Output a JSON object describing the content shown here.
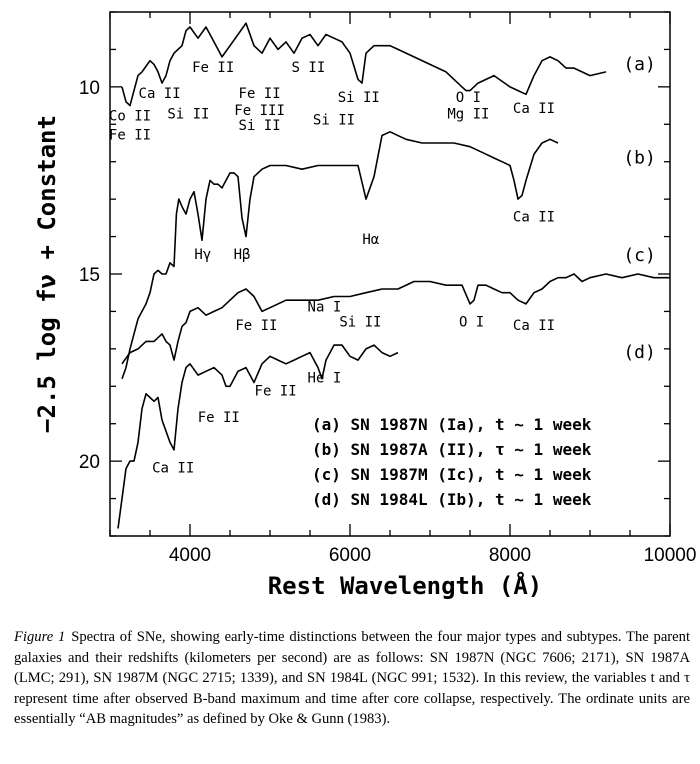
{
  "chart_data": {
    "type": "line",
    "xlabel": "Rest Wavelength (Å)",
    "ylabel": "−2.5 log fν + Constant",
    "xlim": [
      3000,
      10000
    ],
    "ylim": [
      22,
      8
    ],
    "y_inverted": true,
    "x_ticks": [
      4000,
      6000,
      8000,
      10000
    ],
    "x_tick_labels": [
      "4000",
      "6000",
      "8000",
      "10000"
    ],
    "y_ticks": [
      10,
      15,
      20
    ],
    "y_tick_labels": [
      "10",
      "15",
      "20"
    ],
    "grid": false,
    "series": [
      {
        "name": "(a)",
        "x": [
          3150,
          3200,
          3250,
          3300,
          3350,
          3400,
          3500,
          3550,
          3600,
          3650,
          3700,
          3750,
          3800,
          3850,
          3900,
          3950,
          4000,
          4100,
          4200,
          4300,
          4400,
          4500,
          4600,
          4700,
          4800,
          4900,
          5000,
          5100,
          5200,
          5300,
          5400,
          5500,
          5600,
          5700,
          5800,
          5900,
          6000,
          6100,
          6150,
          6200,
          6300,
          6400,
          6500,
          6600,
          6800,
          7000,
          7200,
          7400,
          7450,
          7500,
          7600,
          7700,
          7800,
          8000,
          8100,
          8200,
          8300,
          8400,
          8500,
          8600,
          8700,
          8800,
          9000,
          9200
        ],
        "y": [
          10.0,
          10.4,
          10.5,
          10.1,
          9.7,
          9.6,
          9.3,
          9.4,
          9.6,
          9.9,
          9.7,
          9.3,
          9.1,
          9.0,
          8.9,
          8.5,
          8.4,
          8.7,
          8.4,
          8.8,
          9.2,
          8.9,
          8.6,
          8.3,
          8.9,
          9.1,
          8.7,
          9.0,
          8.8,
          9.1,
          8.7,
          8.6,
          8.9,
          8.6,
          8.7,
          8.8,
          9.1,
          9.8,
          9.9,
          9.1,
          8.9,
          8.9,
          8.9,
          9.0,
          9.2,
          9.4,
          9.6,
          10.0,
          10.1,
          10.1,
          9.9,
          9.8,
          9.7,
          10.0,
          10.1,
          10.2,
          9.7,
          9.3,
          9.2,
          9.3,
          9.5,
          9.5,
          9.7,
          9.6
        ]
      },
      {
        "name": "(b)",
        "x": [
          3150,
          3200,
          3250,
          3300,
          3350,
          3400,
          3450,
          3500,
          3550,
          3600,
          3650,
          3700,
          3750,
          3800,
          3830,
          3860,
          3900,
          3950,
          4000,
          4050,
          4100,
          4150,
          4200,
          4250,
          4300,
          4350,
          4400,
          4450,
          4500,
          4550,
          4600,
          4650,
          4700,
          4750,
          4800,
          4900,
          5000,
          5200,
          5400,
          5600,
          5800,
          6000,
          6100,
          6200,
          6300,
          6400,
          6500,
          6700,
          6900,
          7100,
          7300,
          7500,
          7700,
          7800,
          7900,
          8000,
          8050,
          8100,
          8150,
          8200,
          8300,
          8400,
          8500,
          8600
        ],
        "y": [
          17.8,
          17.5,
          17.0,
          16.6,
          16.2,
          16.0,
          15.8,
          15.5,
          15.0,
          14.9,
          15.0,
          15.0,
          14.7,
          14.8,
          13.4,
          13.0,
          13.2,
          13.4,
          13.0,
          12.8,
          13.4,
          14.1,
          13.0,
          12.5,
          12.6,
          12.6,
          12.7,
          12.5,
          12.3,
          12.3,
          12.4,
          13.5,
          14.0,
          13.0,
          12.4,
          12.2,
          12.1,
          12.1,
          12.2,
          12.1,
          12.1,
          12.1,
          12.1,
          13.0,
          12.4,
          11.3,
          11.2,
          11.4,
          11.5,
          11.5,
          11.5,
          11.6,
          11.8,
          11.9,
          12.0,
          12.1,
          12.5,
          13.0,
          12.9,
          12.5,
          11.8,
          11.5,
          11.4,
          11.5
        ]
      },
      {
        "name": "(c)",
        "x": [
          3150,
          3250,
          3350,
          3450,
          3550,
          3650,
          3700,
          3750,
          3800,
          3850,
          3900,
          3950,
          4000,
          4100,
          4200,
          4300,
          4400,
          4500,
          4600,
          4700,
          4800,
          4900,
          5000,
          5200,
          5400,
          5600,
          5800,
          6000,
          6200,
          6400,
          6600,
          6800,
          7000,
          7200,
          7400,
          7500,
          7550,
          7600,
          7700,
          7800,
          7900,
          8000,
          8100,
          8200,
          8300,
          8400,
          8500,
          8600,
          8700,
          8800,
          8900,
          9000,
          9200,
          9400,
          9600,
          9800,
          10000
        ],
        "y": [
          17.4,
          17.1,
          17.0,
          16.8,
          16.8,
          16.6,
          16.8,
          16.9,
          17.3,
          16.8,
          16.4,
          16.3,
          16.0,
          15.9,
          16.1,
          16.0,
          15.9,
          15.7,
          15.5,
          15.4,
          15.6,
          16.0,
          15.9,
          15.7,
          15.7,
          15.7,
          15.6,
          15.6,
          15.5,
          15.4,
          15.4,
          15.2,
          15.2,
          15.3,
          15.3,
          15.8,
          15.7,
          15.3,
          15.3,
          15.4,
          15.5,
          15.5,
          15.7,
          15.8,
          15.5,
          15.4,
          15.2,
          15.1,
          15.1,
          15.0,
          15.2,
          15.1,
          15.0,
          15.1,
          15.0,
          15.1,
          15.1
        ]
      },
      {
        "name": "(d)",
        "x": [
          3100,
          3150,
          3200,
          3250,
          3300,
          3350,
          3400,
          3450,
          3500,
          3550,
          3600,
          3650,
          3700,
          3750,
          3800,
          3850,
          3900,
          3950,
          4000,
          4100,
          4200,
          4300,
          4400,
          4450,
          4500,
          4550,
          4600,
          4700,
          4800,
          4900,
          5000,
          5100,
          5200,
          5300,
          5400,
          5500,
          5600,
          5650,
          5700,
          5750,
          5800,
          5900,
          6000,
          6100,
          6200,
          6300,
          6400,
          6500,
          6600
        ],
        "y": [
          21.8,
          21.0,
          20.2,
          20.0,
          20.0,
          19.5,
          18.6,
          18.2,
          18.3,
          18.4,
          18.3,
          18.9,
          19.2,
          19.5,
          19.7,
          18.6,
          17.9,
          17.5,
          17.4,
          17.7,
          17.6,
          17.5,
          17.7,
          18.0,
          18.0,
          17.8,
          17.6,
          17.5,
          17.9,
          17.4,
          17.2,
          17.3,
          17.4,
          17.3,
          17.2,
          17.1,
          17.5,
          17.8,
          17.3,
          17.1,
          16.9,
          16.9,
          17.2,
          17.3,
          17.0,
          16.9,
          17.1,
          17.2,
          17.1
        ]
      }
    ],
    "annotations": [
      {
        "text": "Co II",
        "x": 3250,
        "y": 10.9
      },
      {
        "text": "Fe II",
        "x": 3250,
        "y": 11.4
      },
      {
        "text": "Ca II",
        "x": 3620,
        "y": 10.3
      },
      {
        "text": "Si II",
        "x": 3980,
        "y": 10.85
      },
      {
        "text": "Fe II",
        "x": 4290,
        "y": 9.6
      },
      {
        "text": "Fe II",
        "x": 4870,
        "y": 10.3
      },
      {
        "text": "Fe III",
        "x": 4870,
        "y": 10.75
      },
      {
        "text": "Si II",
        "x": 4870,
        "y": 11.15
      },
      {
        "text": "S II",
        "x": 5480,
        "y": 9.6
      },
      {
        "text": "Si II",
        "x": 5800,
        "y": 11.0
      },
      {
        "text": "Si II",
        "x": 6110,
        "y": 10.4
      },
      {
        "text": "O I",
        "x": 7480,
        "y": 10.4
      },
      {
        "text": "Mg II",
        "x": 7480,
        "y": 10.85
      },
      {
        "text": "Ca II",
        "x": 8300,
        "y": 10.7
      },
      {
        "text": "Hγ",
        "x": 4160,
        "y": 14.6
      },
      {
        "text": "Hβ",
        "x": 4650,
        "y": 14.6
      },
      {
        "text": "Hα",
        "x": 6260,
        "y": 14.2
      },
      {
        "text": "Ca II",
        "x": 8300,
        "y": 13.6
      },
      {
        "text": "Na I",
        "x": 5680,
        "y": 16.0
      },
      {
        "text": "Fe II",
        "x": 4830,
        "y": 16.5
      },
      {
        "text": "Si II",
        "x": 6130,
        "y": 16.4
      },
      {
        "text": "O I",
        "x": 7520,
        "y": 16.4
      },
      {
        "text": "Ca II",
        "x": 8300,
        "y": 16.5
      },
      {
        "text": "He I",
        "x": 5680,
        "y": 17.9
      },
      {
        "text": "Fe II",
        "x": 5070,
        "y": 18.25
      },
      {
        "text": "Fe II",
        "x": 4360,
        "y": 18.95
      },
      {
        "text": "Ca II",
        "x": 3790,
        "y": 20.3
      }
    ],
    "tags": [
      {
        "text": "(a)",
        "x": 9620,
        "y": 9.55
      },
      {
        "text": "(b)",
        "x": 9620,
        "y": 12.05
      },
      {
        "text": "(c)",
        "x": 9620,
        "y": 14.65
      },
      {
        "text": "(d)",
        "x": 9620,
        "y": 17.25
      }
    ],
    "legend": {
      "placement": "lower-right",
      "entries": [
        "(a) SN 1987N (Ia), t ~ 1 week",
        "(b) SN 1987A (II), τ ~ 1 week",
        "(c) SN 1987M (Ic), t ~ 1 week",
        "(d) SN 1984L (Ib), t ~ 1 week"
      ]
    }
  },
  "caption": {
    "label": "Figure 1",
    "text": "Spectra of SNe, showing early-time distinctions between the four major types and subtypes. The parent galaxies and their redshifts (kilometers per second) are as follows: SN 1987N (NGC 7606; 2171), SN 1987A (LMC; 291), SN 1987M (NGC 2715; 1339), and SN 1984L (NGC 991; 1532). In this review, the variables t and τ represent time after observed B-band maximum and time after core collapse, respectively. The ordinate units are essentially “AB magnitudes” as defined by Oke & Gunn (1983)."
  }
}
